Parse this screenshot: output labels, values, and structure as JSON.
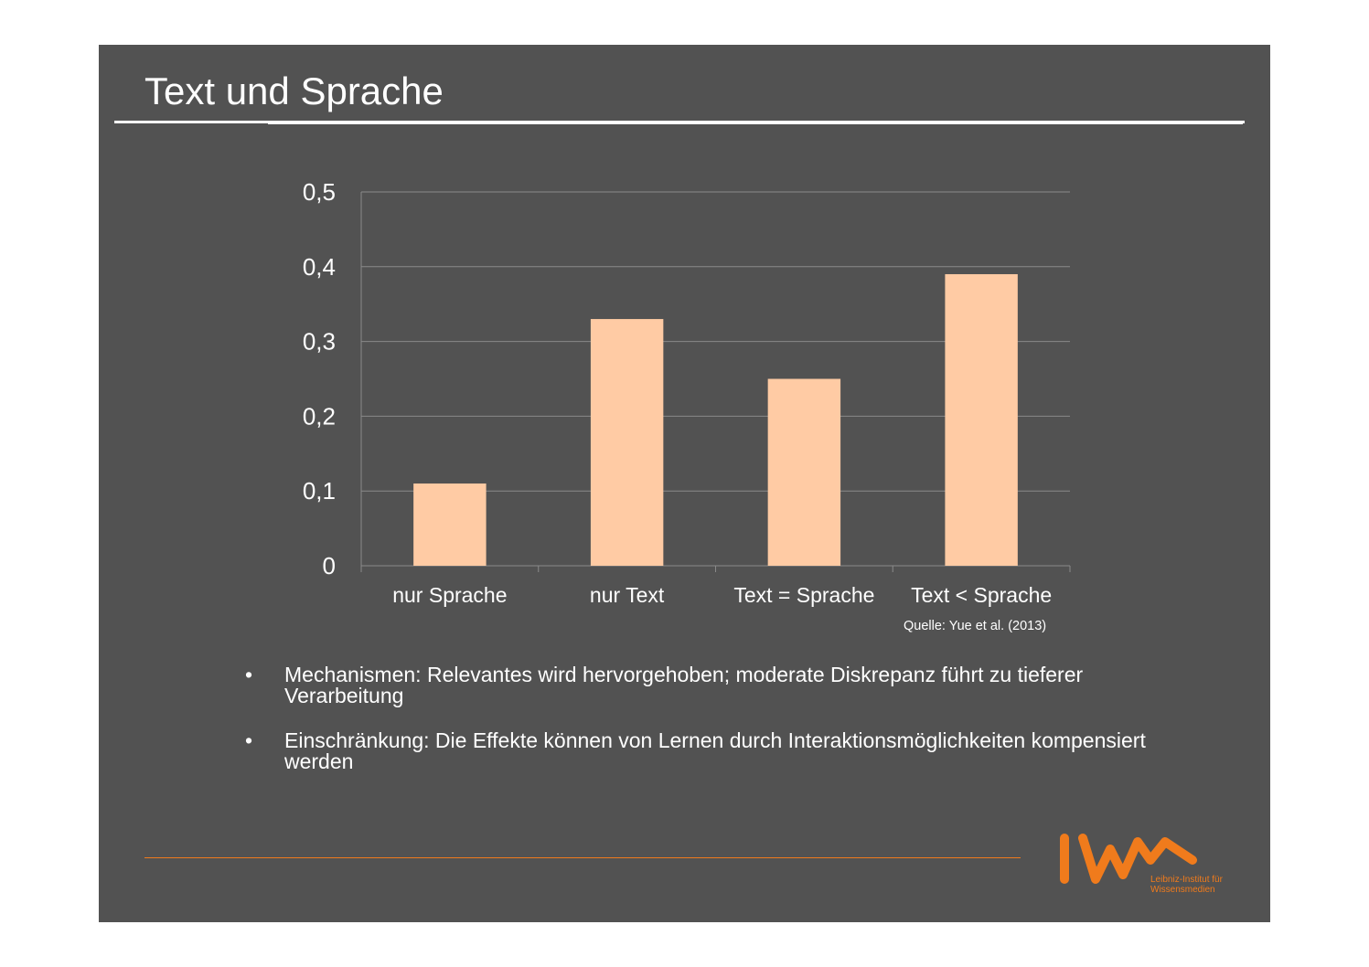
{
  "slide": {
    "title": "Text und Sprache",
    "source": "Quelle: Yue et al. (2013)",
    "bullets": [
      "Mechanismen: Relevantes wird hervorgehoben; moderate Diskrepanz führt zu tieferer Verarbeitung",
      "Einschränkung: Die Effekte können von Lernen durch Interaktionsmöglichkeiten kompensiert werden"
    ],
    "bullet_symbol": "•",
    "logo_sub": "Leibniz-Institut für\nWissensmedien"
  },
  "colors": {
    "background": "#525252",
    "bar": "#ffcba4",
    "accent": "#f07b1c",
    "text": "#ffffff",
    "grid": "#8a8a8a"
  },
  "chart_data": {
    "type": "bar",
    "categories": [
      "nur Sprache",
      "nur Text",
      "Text = Sprache",
      "Text < Sprache"
    ],
    "values": [
      0.11,
      0.33,
      0.25,
      0.39
    ],
    "ylim": [
      0,
      0.5
    ],
    "yticks": [
      0,
      0.1,
      0.2,
      0.3,
      0.4,
      0.5
    ],
    "ytick_labels": [
      "0",
      "0,1",
      "0,2",
      "0,3",
      "0,4",
      "0,5"
    ],
    "grid": true
  }
}
